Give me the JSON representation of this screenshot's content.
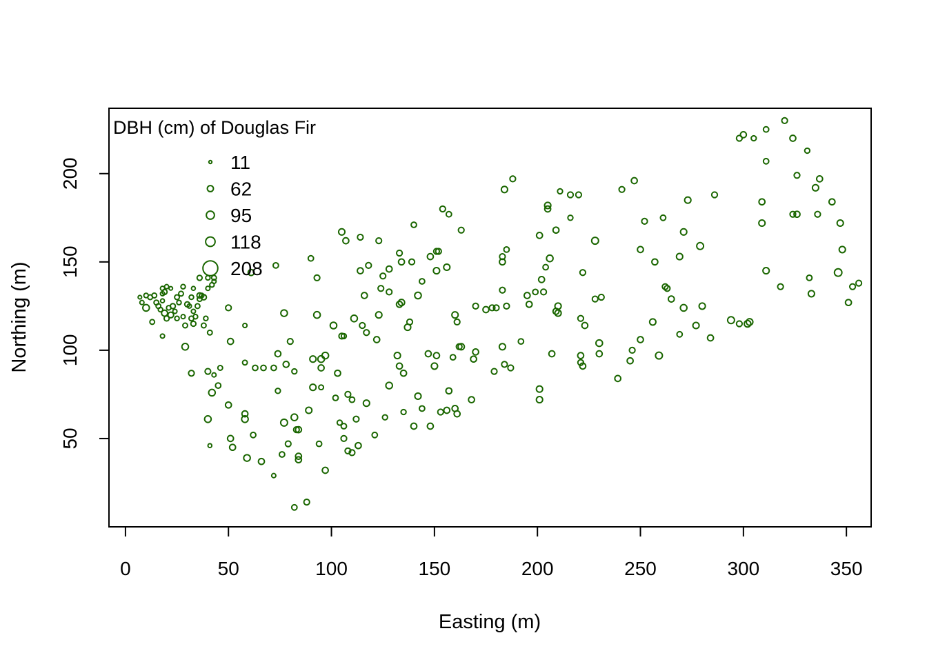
{
  "chart_data": {
    "type": "scatter",
    "xlabel": "Easting (m)",
    "ylabel": "Northing (m)",
    "xlim": [
      -8,
      362
    ],
    "ylim": [
      0,
      237
    ],
    "xticks": [
      0,
      50,
      100,
      150,
      200,
      250,
      300,
      350
    ],
    "yticks": [
      50,
      100,
      150,
      200
    ],
    "grid": false,
    "legend_position": "top-left",
    "point_color": "#1a6600",
    "size_variable": "DBH (cm)",
    "size_range": [
      11,
      208
    ],
    "legend": {
      "title": "DBH (cm) of Douglas Fir",
      "entries": [
        {
          "label": "11",
          "value": 11
        },
        {
          "label": "62",
          "value": 62
        },
        {
          "label": "95",
          "value": 95
        },
        {
          "label": "118",
          "value": 118
        },
        {
          "label": "208",
          "value": 208
        }
      ]
    },
    "points": [
      [
        7,
        130,
        20
      ],
      [
        8,
        127,
        30
      ],
      [
        10,
        131,
        35
      ],
      [
        10,
        124,
        70
      ],
      [
        12,
        130,
        40
      ],
      [
        13,
        116,
        40
      ],
      [
        14,
        131,
        40
      ],
      [
        15,
        127,
        40
      ],
      [
        16,
        125,
        40
      ],
      [
        17,
        123,
        35
      ],
      [
        18,
        132,
        30
      ],
      [
        18,
        128,
        25
      ],
      [
        18,
        135,
        30
      ],
      [
        19,
        133,
        45
      ],
      [
        19,
        121,
        60
      ],
      [
        20,
        118,
        45
      ],
      [
        18,
        108,
        30
      ],
      [
        20,
        136,
        30
      ],
      [
        21,
        124,
        35
      ],
      [
        22,
        120,
        55
      ],
      [
        22,
        135,
        20
      ],
      [
        23,
        125,
        45
      ],
      [
        24,
        122,
        30
      ],
      [
        25,
        118,
        35
      ],
      [
        25,
        130,
        40
      ],
      [
        26,
        127,
        35
      ],
      [
        27,
        132,
        40
      ],
      [
        28,
        136,
        35
      ],
      [
        28,
        119,
        30
      ],
      [
        29,
        114,
        40
      ],
      [
        30,
        126,
        45
      ],
      [
        31,
        125,
        30
      ],
      [
        32,
        130,
        35
      ],
      [
        32,
        118,
        40
      ],
      [
        33,
        135,
        25
      ],
      [
        33,
        122,
        30
      ],
      [
        33,
        115,
        45
      ],
      [
        34,
        119,
        35
      ],
      [
        35,
        125,
        40
      ],
      [
        36,
        141,
        45
      ],
      [
        36,
        131,
        50
      ],
      [
        36,
        129,
        40
      ],
      [
        37,
        131,
        35
      ],
      [
        38,
        130,
        50
      ],
      [
        39,
        118,
        35
      ],
      [
        38,
        114,
        40
      ],
      [
        40,
        141,
        35
      ],
      [
        40,
        135,
        30
      ],
      [
        41,
        110,
        40
      ],
      [
        42,
        137,
        35
      ],
      [
        43,
        139,
        30
      ],
      [
        43,
        141,
        40
      ],
      [
        29,
        102,
        70
      ],
      [
        32,
        87,
        55
      ],
      [
        40,
        88,
        55
      ],
      [
        40,
        61,
        70
      ],
      [
        41,
        46,
        25
      ],
      [
        42,
        76,
        70
      ],
      [
        43,
        86,
        30
      ],
      [
        45,
        80,
        50
      ],
      [
        46,
        90,
        40
      ],
      [
        50,
        124,
        55
      ],
      [
        51,
        105,
        60
      ],
      [
        50,
        69,
        60
      ],
      [
        51,
        50,
        60
      ],
      [
        52,
        45,
        60
      ],
      [
        58,
        93,
        40
      ],
      [
        58,
        114,
        30
      ],
      [
        58,
        64,
        60
      ],
      [
        58,
        61,
        70
      ],
      [
        59,
        39,
        70
      ],
      [
        61,
        144,
        60
      ],
      [
        62,
        52,
        50
      ],
      [
        63,
        90,
        50
      ],
      [
        66,
        37,
        60
      ],
      [
        67,
        90,
        50
      ],
      [
        72,
        29,
        30
      ],
      [
        73,
        148,
        50
      ],
      [
        72,
        90,
        50
      ],
      [
        74,
        98,
        60
      ],
      [
        74,
        77,
        45
      ],
      [
        76,
        41,
        50
      ],
      [
        77,
        121,
        70
      ],
      [
        77,
        59,
        75
      ],
      [
        78,
        92,
        60
      ],
      [
        79,
        47,
        55
      ],
      [
        80,
        105,
        55
      ],
      [
        82,
        88,
        45
      ],
      [
        82,
        62,
        70
      ],
      [
        83,
        55,
        55
      ],
      [
        84,
        55,
        60
      ],
      [
        84,
        38,
        60
      ],
      [
        84,
        40,
        60
      ],
      [
        82,
        11,
        50
      ],
      [
        88,
        14,
        55
      ],
      [
        89,
        66,
        65
      ],
      [
        90,
        152,
        50
      ],
      [
        91,
        79,
        65
      ],
      [
        91,
        95,
        65
      ],
      [
        93,
        120,
        70
      ],
      [
        93,
        141,
        55
      ],
      [
        94,
        47,
        50
      ],
      [
        95,
        79,
        40
      ],
      [
        95,
        95,
        70
      ],
      [
        95,
        90,
        60
      ],
      [
        97,
        97,
        70
      ],
      [
        97,
        32,
        60
      ],
      [
        101,
        114,
        70
      ],
      [
        102,
        73,
        50
      ],
      [
        103,
        87,
        60
      ],
      [
        104,
        59,
        45
      ],
      [
        105,
        167,
        65
      ],
      [
        105,
        108,
        55
      ],
      [
        106,
        108,
        45
      ],
      [
        106,
        50,
        55
      ],
      [
        106,
        57,
        50
      ],
      [
        107,
        162,
        60
      ],
      [
        108,
        75,
        55
      ],
      [
        108,
        43,
        55
      ],
      [
        110,
        42,
        55
      ],
      [
        110,
        72,
        50
      ],
      [
        111,
        118,
        70
      ],
      [
        112,
        61,
        55
      ],
      [
        113,
        46,
        60
      ],
      [
        114,
        164,
        55
      ],
      [
        114,
        145,
        60
      ],
      [
        115,
        114,
        55
      ],
      [
        116,
        131,
        60
      ],
      [
        117,
        70,
        65
      ],
      [
        117,
        110,
        55
      ],
      [
        118,
        148,
        55
      ],
      [
        121,
        52,
        50
      ],
      [
        122,
        106,
        60
      ],
      [
        123,
        120,
        65
      ],
      [
        123,
        162,
        55
      ],
      [
        124,
        135,
        55
      ],
      [
        125,
        142,
        55
      ],
      [
        126,
        62,
        45
      ],
      [
        128,
        146,
        60
      ],
      [
        128,
        133,
        55
      ],
      [
        128,
        80,
        70
      ],
      [
        132,
        97,
        65
      ],
      [
        133,
        126,
        60
      ],
      [
        133,
        155,
        55
      ],
      [
        133,
        91,
        60
      ],
      [
        134,
        150,
        60
      ],
      [
        134,
        127,
        65
      ],
      [
        135,
        87,
        60
      ],
      [
        135,
        65,
        45
      ],
      [
        137,
        113,
        65
      ],
      [
        138,
        116,
        55
      ],
      [
        139,
        150,
        55
      ],
      [
        140,
        171,
        50
      ],
      [
        140,
        57,
        60
      ],
      [
        142,
        74,
        65
      ],
      [
        142,
        131,
        70
      ],
      [
        144,
        67,
        50
      ],
      [
        144,
        139,
        50
      ],
      [
        147,
        98,
        60
      ],
      [
        148,
        57,
        60
      ],
      [
        148,
        153,
        60
      ],
      [
        150,
        91,
        65
      ],
      [
        151,
        145,
        65
      ],
      [
        151,
        156,
        55
      ],
      [
        151,
        97,
        60
      ],
      [
        152,
        156,
        55
      ],
      [
        153,
        65,
        55
      ],
      [
        154,
        180,
        55
      ],
      [
        156,
        66,
        60
      ],
      [
        156,
        147,
        65
      ],
      [
        157,
        177,
        50
      ],
      [
        157,
        77,
        60
      ],
      [
        159,
        96,
        50
      ],
      [
        160,
        67,
        60
      ],
      [
        160,
        120,
        65
      ],
      [
        161,
        116,
        55
      ],
      [
        161,
        64,
        60
      ],
      [
        162,
        102,
        55
      ],
      [
        163,
        102,
        65
      ],
      [
        163,
        168,
        55
      ],
      [
        168,
        72,
        60
      ],
      [
        169,
        95,
        60
      ],
      [
        170,
        99,
        60
      ],
      [
        170,
        125,
        55
      ],
      [
        175,
        123,
        60
      ],
      [
        178,
        124,
        55
      ],
      [
        179,
        88,
        55
      ],
      [
        180,
        124,
        55
      ],
      [
        183,
        150,
        60
      ],
      [
        183,
        153,
        55
      ],
      [
        183,
        134,
        55
      ],
      [
        183,
        102,
        65
      ],
      [
        184,
        191,
        65
      ],
      [
        184,
        92,
        55
      ],
      [
        185,
        125,
        55
      ],
      [
        185,
        157,
        50
      ],
      [
        187,
        90,
        55
      ],
      [
        188,
        197,
        55
      ],
      [
        192,
        105,
        50
      ],
      [
        195,
        131,
        60
      ],
      [
        196,
        126,
        60
      ],
      [
        199,
        133,
        50
      ],
      [
        201,
        165,
        60
      ],
      [
        201,
        78,
        65
      ],
      [
        201,
        72,
        65
      ],
      [
        202,
        140,
        60
      ],
      [
        203,
        133,
        55
      ],
      [
        204,
        147,
        50
      ],
      [
        205,
        180,
        60
      ],
      [
        205,
        182,
        65
      ],
      [
        206,
        152,
        70
      ],
      [
        207,
        98,
        60
      ],
      [
        209,
        122,
        60
      ],
      [
        209,
        168,
        60
      ],
      [
        210,
        121,
        65
      ],
      [
        210,
        125,
        65
      ],
      [
        211,
        190,
        45
      ],
      [
        216,
        188,
        55
      ],
      [
        216,
        175,
        45
      ],
      [
        220,
        188,
        55
      ],
      [
        221,
        118,
        55
      ],
      [
        221,
        93,
        55
      ],
      [
        221,
        97,
        60
      ],
      [
        222,
        91,
        60
      ],
      [
        222,
        144,
        55
      ],
      [
        223,
        114,
        60
      ],
      [
        228,
        162,
        75
      ],
      [
        228,
        129,
        55
      ],
      [
        230,
        98,
        60
      ],
      [
        230,
        104,
        70
      ],
      [
        231,
        130,
        55
      ],
      [
        239,
        84,
        60
      ],
      [
        241,
        191,
        55
      ],
      [
        245,
        94,
        60
      ],
      [
        246,
        100,
        55
      ],
      [
        247,
        196,
        60
      ],
      [
        250,
        157,
        60
      ],
      [
        250,
        106,
        60
      ],
      [
        252,
        173,
        55
      ],
      [
        256,
        116,
        65
      ],
      [
        257,
        150,
        60
      ],
      [
        259,
        97,
        75
      ],
      [
        261,
        175,
        50
      ],
      [
        262,
        136,
        55
      ],
      [
        263,
        135,
        55
      ],
      [
        265,
        129,
        60
      ],
      [
        269,
        109,
        50
      ],
      [
        269,
        153,
        65
      ],
      [
        271,
        167,
        65
      ],
      [
        271,
        124,
        70
      ],
      [
        273,
        185,
        65
      ],
      [
        277,
        114,
        65
      ],
      [
        279,
        159,
        75
      ],
      [
        280,
        125,
        65
      ],
      [
        284,
        107,
        60
      ],
      [
        286,
        188,
        55
      ],
      [
        294,
        117,
        75
      ],
      [
        298,
        115,
        55
      ],
      [
        298,
        220,
        55
      ],
      [
        300,
        222,
        60
      ],
      [
        302,
        115,
        70
      ],
      [
        303,
        116,
        70
      ],
      [
        305,
        220,
        45
      ],
      [
        309,
        172,
        65
      ],
      [
        309,
        184,
        60
      ],
      [
        311,
        145,
        65
      ],
      [
        311,
        207,
        50
      ],
      [
        311,
        225,
        50
      ],
      [
        318,
        136,
        55
      ],
      [
        320,
        230,
        55
      ],
      [
        324,
        220,
        60
      ],
      [
        324,
        177,
        55
      ],
      [
        326,
        177,
        60
      ],
      [
        326,
        199,
        55
      ],
      [
        331,
        213,
        45
      ],
      [
        332,
        141,
        50
      ],
      [
        333,
        132,
        65
      ],
      [
        335,
        192,
        65
      ],
      [
        336,
        177,
        55
      ],
      [
        337,
        197,
        60
      ],
      [
        343,
        184,
        60
      ],
      [
        346,
        144,
        85
      ],
      [
        347,
        172,
        65
      ],
      [
        348,
        157,
        65
      ],
      [
        351,
        127,
        60
      ],
      [
        353,
        136,
        55
      ],
      [
        356,
        138,
        55
      ]
    ]
  }
}
